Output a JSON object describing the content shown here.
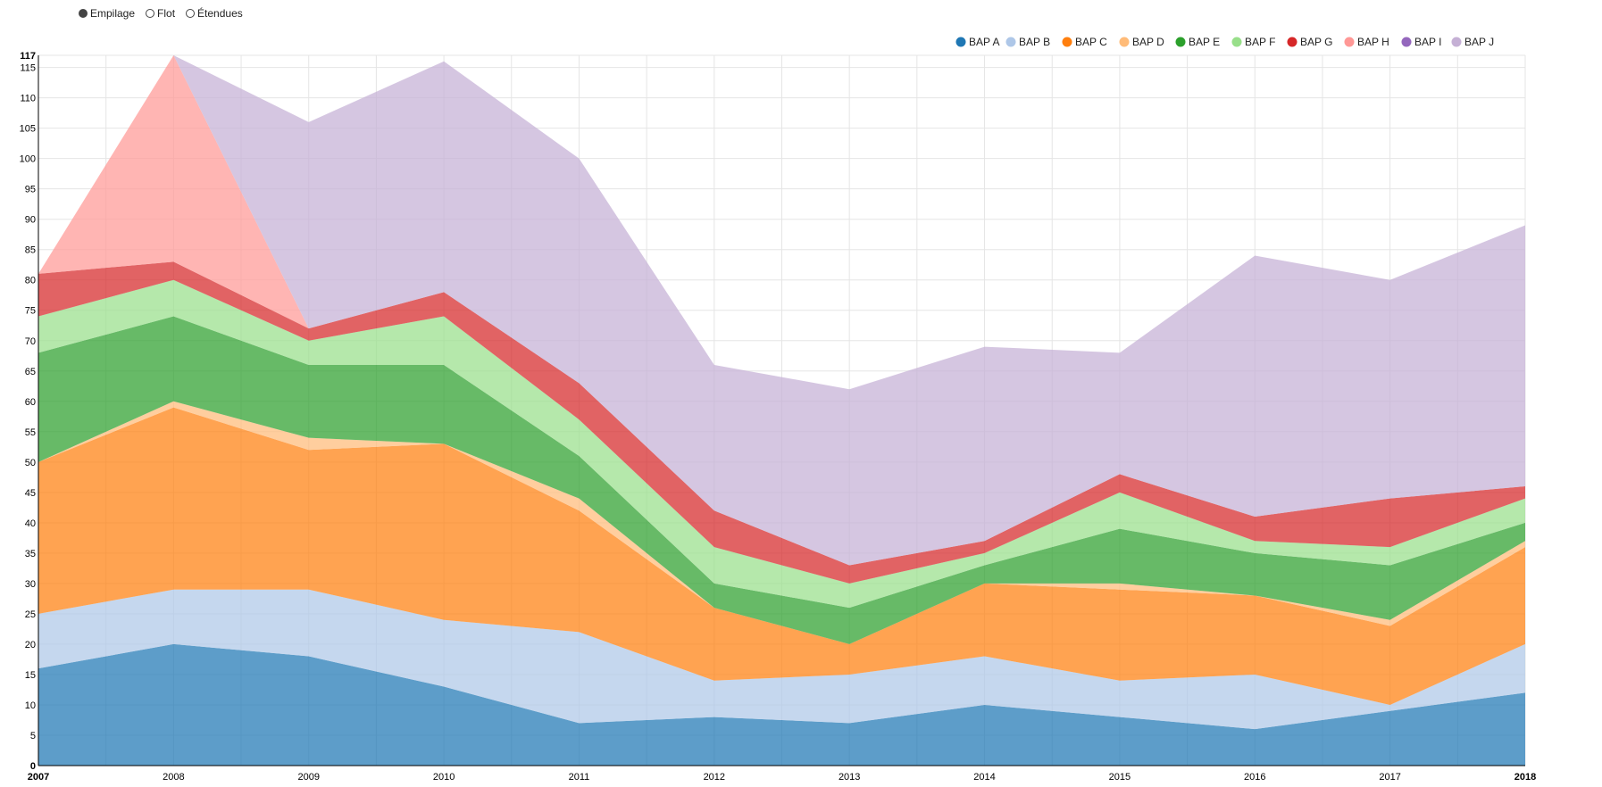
{
  "controls": [
    {
      "label": "Empilage",
      "selected": true
    },
    {
      "label": "Flot",
      "selected": false
    },
    {
      "label": "Étendues",
      "selected": false
    }
  ],
  "chart_data": {
    "type": "area",
    "stacked": true,
    "x": [
      2007,
      2008,
      2009,
      2010,
      2011,
      2012,
      2013,
      2014,
      2015,
      2016,
      2017,
      2018
    ],
    "ylim": [
      0,
      117
    ],
    "yticks": [
      0,
      5,
      10,
      15,
      20,
      25,
      30,
      35,
      40,
      45,
      50,
      55,
      60,
      65,
      70,
      75,
      80,
      85,
      90,
      95,
      100,
      105,
      110,
      115,
      117
    ],
    "grid": true,
    "legend_position": "top-right",
    "series": [
      {
        "name": "BAP A",
        "color": "#1f77b4",
        "values": [
          16,
          20,
          18,
          13,
          7,
          8,
          7,
          10,
          8,
          6,
          9,
          12
        ]
      },
      {
        "name": "BAP B",
        "color": "#aec7e8",
        "values": [
          9,
          9,
          11,
          11,
          15,
          6,
          8,
          8,
          6,
          9,
          1,
          8
        ]
      },
      {
        "name": "BAP C",
        "color": "#ff7f0e",
        "values": [
          25,
          30,
          23,
          29,
          20,
          12,
          5,
          12,
          15,
          13,
          13,
          16
        ]
      },
      {
        "name": "BAP D",
        "color": "#ffbb78",
        "values": [
          0,
          1,
          2,
          0,
          2,
          0,
          0,
          0,
          1,
          0,
          1,
          1
        ]
      },
      {
        "name": "BAP E",
        "color": "#2ca02c",
        "values": [
          18,
          14,
          12,
          13,
          7,
          4,
          6,
          3,
          9,
          7,
          9,
          3
        ]
      },
      {
        "name": "BAP F",
        "color": "#98df8a",
        "values": [
          6,
          6,
          4,
          8,
          6,
          6,
          4,
          2,
          6,
          2,
          3,
          4
        ]
      },
      {
        "name": "BAP G",
        "color": "#d62728",
        "values": [
          7,
          3,
          2,
          4,
          6,
          6,
          3,
          2,
          3,
          4,
          8,
          2
        ]
      },
      {
        "name": "BAP H",
        "color": "#ff9896",
        "values": [
          0,
          34,
          0,
          0,
          0,
          0,
          0,
          0,
          0,
          0,
          0,
          0
        ]
      },
      {
        "name": "BAP I",
        "color": "#9467bd",
        "values": [
          0,
          0,
          0,
          0,
          0,
          0,
          0,
          0,
          0,
          0,
          0,
          0
        ]
      },
      {
        "name": "BAP J",
        "color": "#c5b0d5",
        "values": [
          0,
          0,
          34,
          38,
          37,
          24,
          29,
          32,
          20,
          43,
          36,
          43
        ]
      }
    ]
  }
}
